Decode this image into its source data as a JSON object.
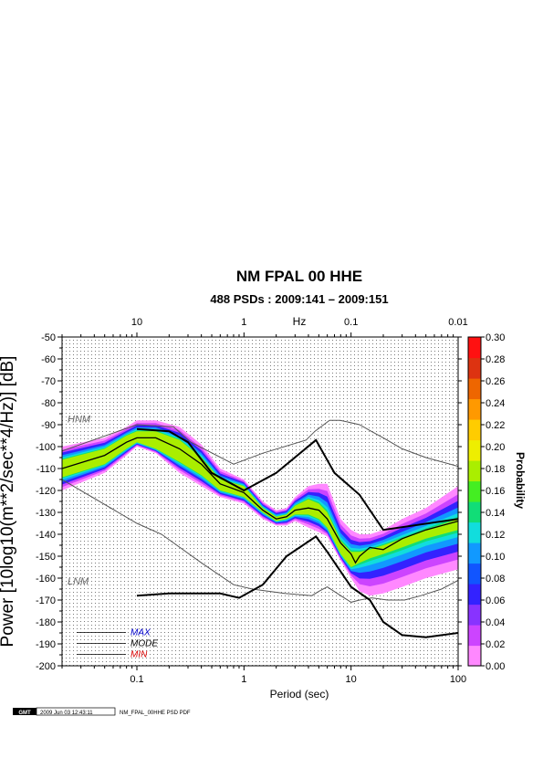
{
  "chart_data": {
    "type": "heatmap",
    "title": "NM FPAL 00 HHE",
    "subtitle": "488 PSDs : 2009:141 – 2009:151",
    "xlabel": "Period (sec)",
    "ylabel": "Power [10log10(m**2/sec**4/Hz)] [dB]",
    "x_scale": "log",
    "xlim": [
      0.02,
      100
    ],
    "ylim": [
      -200,
      -50
    ],
    "x_ticks": [
      0.1,
      1,
      10,
      100
    ],
    "x_tick_labels": [
      "0.1",
      "1",
      "10",
      "100"
    ],
    "top_axis_label": "Hz",
    "top_ticks": [
      10,
      1,
      0.1,
      0.01
    ],
    "top_tick_labels": [
      "10",
      "1",
      "0.1",
      "0.01"
    ],
    "y_ticks": [
      -50,
      -60,
      -70,
      -80,
      -90,
      -100,
      -110,
      -120,
      -130,
      -140,
      -150,
      -160,
      -170,
      -180,
      -190,
      -200
    ],
    "y_tick_labels": [
      "-50",
      "-60",
      "-70",
      "-80",
      "-90",
      "-100",
      "-110",
      "-120",
      "-130",
      "-140",
      "-150",
      "-160",
      "-170",
      "-180",
      "-190",
      "-200"
    ],
    "grid": true,
    "colorbar": {
      "label": "Probability",
      "range": [
        0,
        0.3
      ],
      "ticks": [
        0.0,
        0.02,
        0.04,
        0.06,
        0.08,
        0.1,
        0.12,
        0.14,
        0.16,
        0.18,
        0.2,
        0.22,
        0.24,
        0.26,
        0.28,
        0.3
      ],
      "tick_labels": [
        "0.00",
        "0.02",
        "0.04",
        "0.06",
        "0.08",
        "0.10",
        "0.12",
        "0.14",
        "0.16",
        "0.18",
        "0.20",
        "0.22",
        "0.24",
        "0.26",
        "0.28",
        "0.30"
      ],
      "colors": [
        "#ff88ff",
        "#cc44ff",
        "#8833ff",
        "#3322ff",
        "#1155ff",
        "#1199ff",
        "#11dddd",
        "#11dd77",
        "#44ee22",
        "#aaee00",
        "#eeee00",
        "#ffcc00",
        "#ff9900",
        "#ee6600",
        "#dd3311",
        "#ff1111"
      ]
    },
    "reference_labels": [
      "HNM",
      "LNM"
    ],
    "nhnm": {
      "x": [
        0.02,
        0.1,
        0.22,
        0.32,
        0.8,
        1.5,
        3.8,
        4.6,
        6.3,
        7.9,
        12,
        15.4,
        20,
        30,
        50,
        100
      ],
      "y": [
        -102,
        -90,
        -91,
        -98,
        -108,
        -103,
        -97,
        -93,
        -88,
        -88,
        -90,
        -93,
        -96,
        -101,
        -105,
        -109
      ]
    },
    "nlnm": {
      "x": [
        0.02,
        0.1,
        0.17,
        0.4,
        0.8,
        1.2,
        2.4,
        4.3,
        5.0,
        6.0,
        8.0,
        10,
        12,
        15.6,
        21.9,
        31.6,
        45,
        70,
        100
      ],
      "y": [
        -115,
        -135,
        -140,
        -153,
        -163,
        -165,
        -167,
        -168,
        -166,
        -164,
        -168,
        -171,
        -170,
        -169,
        -170,
        -170,
        -168,
        -165,
        -161
      ]
    },
    "pdf_band": {
      "x": [
        0.02,
        0.05,
        0.08,
        0.1,
        0.15,
        0.25,
        0.4,
        0.6,
        1.0,
        1.5,
        2.0,
        2.5,
        3.0,
        4.0,
        5.0,
        6.0,
        8.0,
        10,
        12,
        15,
        20,
        30,
        50,
        100
      ],
      "upper": [
        -100,
        -96,
        -91,
        -88,
        -88,
        -91,
        -99,
        -110,
        -115,
        -125,
        -129,
        -128,
        -123,
        -118,
        -117,
        -117,
        -133,
        -138,
        -140,
        -140,
        -138,
        -133,
        -128,
        -118
      ],
      "lower": [
        -120,
        -112,
        -104,
        -100,
        -103,
        -112,
        -118,
        -123,
        -126,
        -133,
        -136,
        -136,
        -134,
        -137,
        -139,
        -141,
        -152,
        -160,
        -166,
        -168,
        -167,
        -164,
        -160,
        -156
      ],
      "core_upper": [
        -106,
        -101,
        -95,
        -93,
        -93,
        -97,
        -105,
        -115,
        -118,
        -128,
        -132,
        -131,
        -127,
        -124,
        -126,
        -130,
        -143,
        -148,
        -148,
        -147,
        -145,
        -142,
        -138,
        -133
      ],
      "core_lower": [
        -114,
        -108,
        -101,
        -98,
        -101,
        -107,
        -113,
        -120,
        -123,
        -130,
        -134,
        -133,
        -131,
        -131,
        -133,
        -137,
        -149,
        -155,
        -153,
        -151,
        -149,
        -146,
        -142,
        -138
      ]
    },
    "mode": {
      "x": [
        0.02,
        0.05,
        0.08,
        0.1,
        0.15,
        0.25,
        0.4,
        0.6,
        1.0,
        1.5,
        2.0,
        2.5,
        3.0,
        4.0,
        5.0,
        6.0,
        8.0,
        10,
        11,
        12,
        15,
        20,
        30,
        50,
        100
      ],
      "y": [
        -110,
        -104,
        -98,
        -96,
        -96,
        -101,
        -108,
        -117,
        -121,
        -129,
        -133,
        -132,
        -129,
        -128,
        -129,
        -133,
        -144,
        -149,
        -153,
        -150,
        -146,
        -147,
        -142,
        -138,
        -134
      ]
    },
    "max": {
      "x": [
        0.1,
        0.2,
        0.3,
        0.5,
        1.0,
        2.0,
        4.7,
        7.0,
        12,
        20,
        100
      ],
      "y": [
        -92,
        -93,
        -98,
        -112,
        -120,
        -112,
        -97,
        -112,
        -122,
        -138,
        -133
      ]
    },
    "min": {
      "x": [
        0.1,
        0.2,
        0.35,
        0.6,
        0.9,
        1.5,
        2.5,
        4.7,
        6.0,
        10,
        15,
        20,
        30,
        50,
        100
      ],
      "y": [
        -168,
        -167,
        -167,
        -167,
        -169,
        -163,
        -150,
        -141,
        -148,
        -164,
        -170,
        -180,
        -186,
        -187,
        -185
      ]
    },
    "legend": {
      "position": "bottom-left",
      "entries": [
        {
          "name": "MAX",
          "color": "#0000cc"
        },
        {
          "name": "MODE",
          "color": "#000000"
        },
        {
          "name": "MIN",
          "color": "#dd0000"
        }
      ]
    }
  },
  "footer": {
    "gmt": "GMT",
    "timestamp": "2009 Jun 03 12:43:11",
    "label": "NM_FPAL_00HHE PSD PDF"
  }
}
